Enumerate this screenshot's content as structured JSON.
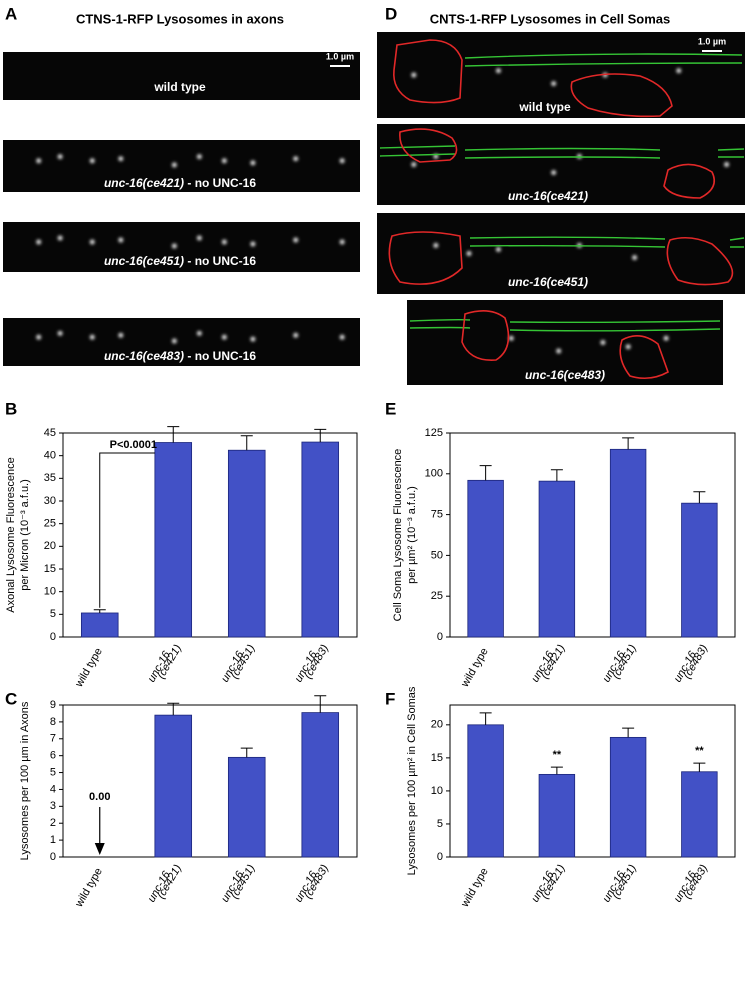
{
  "panels": [
    {
      "label": "A",
      "title": "CTNS-1-RFP Lysosomes in axons",
      "scale_bar": "1.0 µm",
      "images": [
        {
          "genotype": "wild type",
          "italic": false
        },
        {
          "genotype": "unc-16(ce421)",
          "note": "- no UNC-16",
          "italic": true
        },
        {
          "genotype": "unc-16(ce451)",
          "note": "- no UNC-16",
          "italic": true
        },
        {
          "genotype": "unc-16(ce483)",
          "note": "- no UNC-16",
          "italic": true
        }
      ]
    },
    {
      "label": "D",
      "title": "CNTS-1-RFP Lysosomes in Cell Somas",
      "scale_bar": "1.0 µm",
      "images": [
        {
          "genotype": "wild type",
          "italic": false
        },
        {
          "genotype": "unc-16(ce421)",
          "italic": true
        },
        {
          "genotype": "unc-16(ce451)",
          "italic": true
        },
        {
          "genotype": "unc-16(ce483)",
          "italic": true
        }
      ]
    }
  ],
  "chart_data": [
    {
      "label": "B",
      "type": "bar",
      "y_label": [
        "Axonal Lysosome Fluorescence",
        "per Micron (10⁻³ a.f.u.)"
      ],
      "categories": [
        "wild type",
        "unc-16\n(ce421)",
        "unc-16\n(ce451)",
        "unc-16\n(ce483)"
      ],
      "italic": [
        false,
        true,
        true,
        true
      ],
      "values": [
        5.3,
        42.9,
        41.2,
        43.0
      ],
      "errors": [
        0.7,
        3.5,
        3.2,
        2.8
      ],
      "color": "#4251c6",
      "ylim": [
        0,
        45
      ],
      "yticks": [
        0,
        5,
        10,
        15,
        20,
        25,
        30,
        35,
        40,
        45
      ],
      "comparison": {
        "text": "P<0.0001",
        "color": "#e0202a",
        "from": 0,
        "to": 1
      }
    },
    {
      "label": "C",
      "type": "bar",
      "y_label": [
        "Lysosomes per 100 µm in Axons"
      ],
      "categories": [
        "wild type",
        "unc-16\n(ce421)",
        "unc-16\n(ce451)",
        "unc-16\n(ce483)"
      ],
      "italic": [
        false,
        true,
        true,
        true
      ],
      "values": [
        0,
        8.4,
        5.9,
        8.55
      ],
      "value_labels": [
        "0.00",
        null,
        null,
        null
      ],
      "errors": [
        null,
        0.7,
        0.55,
        1.0
      ],
      "color": "#4251c6",
      "ylim": [
        0,
        9
      ],
      "yticks": [
        0,
        1,
        2,
        3,
        4,
        5,
        6,
        7,
        8,
        9
      ]
    },
    {
      "label": "E",
      "type": "bar",
      "y_label": [
        "Cell Soma Lysosome Fluorescence",
        "per µm² (10⁻³ a.f.u.)"
      ],
      "categories": [
        "wild type",
        "unc-16\n(ce421)",
        "unc-16\n(ce451)",
        "unc-16\n(ce483)"
      ],
      "italic": [
        false,
        true,
        true,
        true
      ],
      "values": [
        96,
        95.5,
        115,
        82
      ],
      "errors": [
        9,
        7,
        7,
        7
      ],
      "color": "#4251c6",
      "ylim": [
        0,
        125
      ],
      "yticks": [
        0,
        25,
        50,
        75,
        100,
        125
      ]
    },
    {
      "label": "F",
      "type": "bar",
      "y_label": [
        "Lysosomes per 100 µm² in Cell Somas"
      ],
      "categories": [
        "wild type",
        "unc-16\n(ce421)",
        "unc-16\n(ce451)",
        "unc-16\n(ce483)"
      ],
      "italic": [
        false,
        true,
        true,
        true
      ],
      "values": [
        20,
        12.5,
        18.1,
        12.9
      ],
      "errors": [
        1.8,
        1.1,
        1.4,
        1.3
      ],
      "color": "#4251c6",
      "annotations": [
        null,
        "**",
        null,
        "**"
      ],
      "ylim": [
        0,
        23
      ],
      "yticks": [
        0,
        5,
        10,
        15,
        20
      ]
    }
  ]
}
